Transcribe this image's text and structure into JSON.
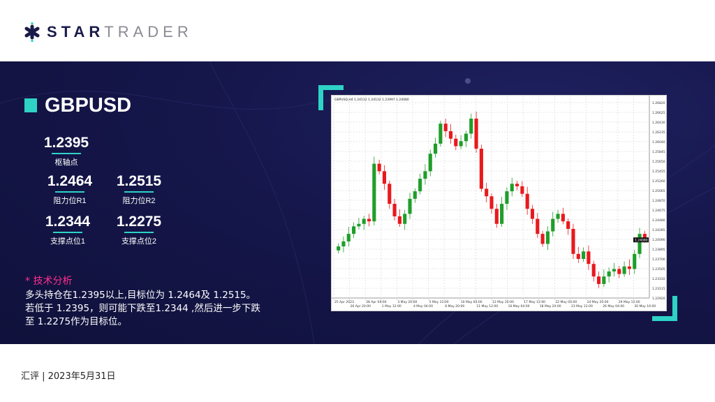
{
  "brand": {
    "bold": "STAR",
    "light": "TRADER",
    "accent": "#2ed3c6",
    "navy": "#1b1b4b"
  },
  "symbol": "GBPUSD",
  "levels": [
    {
      "value": "1.2395",
      "label": "枢轴点"
    },
    {
      "value": "1.2464",
      "label": "阻力位R1"
    },
    {
      "value": "1.2515",
      "label": "阻力位R2"
    },
    {
      "value": "1.2344",
      "label": "支撑点位1"
    },
    {
      "value": "1.2275",
      "label": "支撑点位2"
    }
  ],
  "analysis": {
    "title": "* 技术分析",
    "lines": [
      "多头持仓在1.2395以上,目标位为  1.2464及 1.2515。",
      "若低于 1.2395，则可能下跌至1.2344 ,然后进一步下跌",
      "至 1.2275作为目标位。"
    ]
  },
  "footer": "汇评 | 2023年5月31日",
  "chart_data": {
    "type": "candlestick",
    "title": "GBPUSD,H4  1.24112 1.24132 1.23997 1.24080",
    "ylim": [
      1.2292,
      1.2682
    ],
    "last_price": "1.24080",
    "up_color": "#1f9e2a",
    "down_color": "#e8191e",
    "grid": true,
    "closes": [
      1.2395,
      1.2405,
      1.242,
      1.2435,
      1.244,
      1.245,
      1.2445,
      1.256,
      1.2545,
      1.252,
      1.248,
      1.2455,
      1.244,
      1.246,
      1.249,
      1.2505,
      1.253,
      1.2545,
      1.258,
      1.26,
      1.264,
      1.2625,
      1.261,
      1.2595,
      1.2605,
      1.262,
      1.265,
      1.259,
      1.251,
      1.2495,
      1.247,
      1.244,
      1.248,
      1.2505,
      1.252,
      1.2515,
      1.25,
      1.247,
      1.245,
      1.242,
      1.24,
      1.2425,
      1.245,
      1.246,
      1.2445,
      1.243,
      1.238,
      1.237,
      1.2385,
      1.236,
      1.2335,
      1.232,
      1.2335,
      1.2345,
      1.235,
      1.234,
      1.2355,
      1.235,
      1.238,
      1.242,
      1.2408
    ],
    "y_ticks": [
      "1.26820",
      "1.26625",
      "1.26430",
      "1.26235",
      "1.26040",
      "1.25845",
      "1.25650",
      "1.25455",
      "1.25260",
      "1.25065",
      "1.24870",
      "1.24675",
      "1.24480",
      "1.24285",
      "1.24090",
      "1.23895",
      "1.23700",
      "1.23505",
      "1.23310",
      "1.23115",
      "1.22920"
    ],
    "x_ticks": [
      "25 Apr 2023",
      "26 Apr 20:00",
      "28 Apr 04:00",
      "1 May 12:00",
      "3 May 20:00",
      "4 May 04:00",
      "5 May 12:00",
      "8 May 20:00",
      "10 May 04:00",
      "11 May 12:00",
      "12 May 20:00",
      "16 May 04:00",
      "17 May 12:00",
      "18 May 20:00",
      "22 May 04:00",
      "23 May 12:00",
      "24 May 20:00",
      "26 May 04:00",
      "29 May 12:00",
      "30 May 16:00"
    ]
  }
}
